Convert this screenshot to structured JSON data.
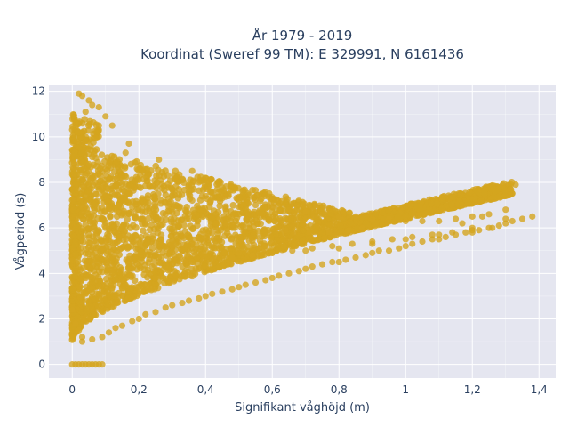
{
  "chart_data": {
    "type": "scatter",
    "title": "År 1979 - 2019",
    "subtitle": "Koordinat (Sweref 99 TM): E 329991, N 6161436",
    "xlabel": "Signifikant våghöjd (m)",
    "ylabel": "Vågperiod (s)",
    "xlim": [
      -0.07,
      1.45
    ],
    "ylim": [
      -0.6,
      12.3
    ],
    "x_ticks": [
      0,
      0.2,
      0.4,
      0.6,
      0.8,
      1,
      1.2,
      1.4
    ],
    "x_tick_labels": [
      "0",
      "0,2",
      "0,4",
      "0,6",
      "0,8",
      "1",
      "1,2",
      "1,4"
    ],
    "y_ticks": [
      0,
      2,
      4,
      6,
      8,
      10,
      12
    ],
    "y_tick_labels": [
      "0",
      "2",
      "4",
      "6",
      "8",
      "10",
      "12"
    ],
    "grid": true,
    "legend": "none",
    "marker_color": "#d4a51f",
    "plot_background": "#e5e6f0",
    "series": [
      {
        "x": [
          0.0,
          0.01,
          0.02,
          0.03,
          0.04,
          0.05,
          0.06,
          0.07,
          0.08,
          0.09,
          0.0,
          0.01,
          0.02,
          0.03,
          0.02,
          0.03,
          0.05,
          0.06,
          0.04,
          0.08,
          0.1,
          0.12,
          0.02,
          0.04,
          0.03,
          0.06,
          0.09,
          0.11,
          0.13,
          0.15,
          0.18,
          0.2,
          0.22,
          0.25,
          0.28,
          0.3,
          0.33,
          0.35,
          0.38,
          0.4,
          0.42,
          0.45,
          0.48,
          0.5,
          0.52,
          0.55,
          0.58,
          0.6,
          0.62,
          0.65,
          0.68,
          0.7,
          0.72,
          0.75,
          0.78,
          0.8,
          0.82,
          0.85,
          0.88,
          0.9,
          0.92,
          0.95,
          0.98,
          1.0,
          1.02,
          1.05,
          1.08,
          1.1,
          1.12,
          1.15,
          1.18,
          1.2,
          1.22,
          1.25,
          1.28,
          1.3,
          1.32,
          1.35,
          1.38,
          0.05,
          0.1,
          0.15,
          0.2,
          0.25,
          0.3,
          0.35,
          0.4,
          0.45,
          0.5,
          0.55,
          0.6,
          0.65,
          0.7,
          0.75,
          0.8,
          0.85,
          0.9,
          0.95,
          1.0,
          1.05,
          1.1,
          1.15,
          1.2,
          1.25,
          1.3,
          0.1,
          0.2,
          0.3,
          0.4,
          0.5,
          0.6,
          0.7,
          0.8,
          0.9,
          1.0,
          1.1,
          1.2,
          1.3,
          0.12,
          0.18,
          0.24,
          0.3,
          0.36,
          0.42,
          0.48,
          0.54,
          0.6,
          0.66,
          0.72,
          0.78,
          0.84,
          0.9,
          0.96,
          1.02,
          1.08,
          1.14,
          1.2,
          1.26,
          0.07,
          0.14,
          0.21,
          0.28,
          0.35,
          0.46,
          0.53,
          0.64,
          0.71,
          0.77,
          0.83,
          0.87,
          1.17,
          1.23,
          1.33,
          0.16,
          0.26,
          0.36,
          0.38,
          0.36,
          0.18,
          0.21,
          0.17,
          0.08
        ],
        "y": [
          0.0,
          0.0,
          0.0,
          0.0,
          0.0,
          0.0,
          0.0,
          0.0,
          0.0,
          0.0,
          2.4,
          1.8,
          1.5,
          1.2,
          11.9,
          11.8,
          11.6,
          11.4,
          11.1,
          11.3,
          10.9,
          10.5,
          10.2,
          9.8,
          1.0,
          1.1,
          1.2,
          1.4,
          1.6,
          1.7,
          1.9,
          2.0,
          2.2,
          2.3,
          2.5,
          2.6,
          2.7,
          2.8,
          2.9,
          3.0,
          3.1,
          3.2,
          3.3,
          3.4,
          3.5,
          3.6,
          3.7,
          3.8,
          3.9,
          4.0,
          4.1,
          4.2,
          4.3,
          4.4,
          4.5,
          4.5,
          4.6,
          4.7,
          4.8,
          4.9,
          5.0,
          5.0,
          5.1,
          5.2,
          5.3,
          5.4,
          5.5,
          5.5,
          5.6,
          5.7,
          5.8,
          5.8,
          5.9,
          6.0,
          6.1,
          6.2,
          6.3,
          6.4,
          6.5,
          8.8,
          8.6,
          8.3,
          8.1,
          7.9,
          7.7,
          7.5,
          7.4,
          7.3,
          7.2,
          7.0,
          6.9,
          6.8,
          6.7,
          6.6,
          6.5,
          6.5,
          6.4,
          6.4,
          6.3,
          6.3,
          6.3,
          6.4,
          6.5,
          6.6,
          6.8,
          6.0,
          5.5,
          5.2,
          5.0,
          4.9,
          4.9,
          5.0,
          5.1,
          5.3,
          5.5,
          5.7,
          6.0,
          6.4,
          4.0,
          4.2,
          4.3,
          4.4,
          4.5,
          4.6,
          4.7,
          4.8,
          4.9,
          5.0,
          5.1,
          5.2,
          5.3,
          5.4,
          5.5,
          5.6,
          5.7,
          5.8,
          5.9,
          6.0,
          7.5,
          7.0,
          6.8,
          6.6,
          6.4,
          6.2,
          6.0,
          5.9,
          5.8,
          5.8,
          5.9,
          6.0,
          6.2,
          6.5,
          7.9,
          9.3,
          9.0,
          8.5,
          8.0,
          7.2,
          6.9,
          6.7,
          9.7,
          10.5
        ]
      }
    ]
  }
}
